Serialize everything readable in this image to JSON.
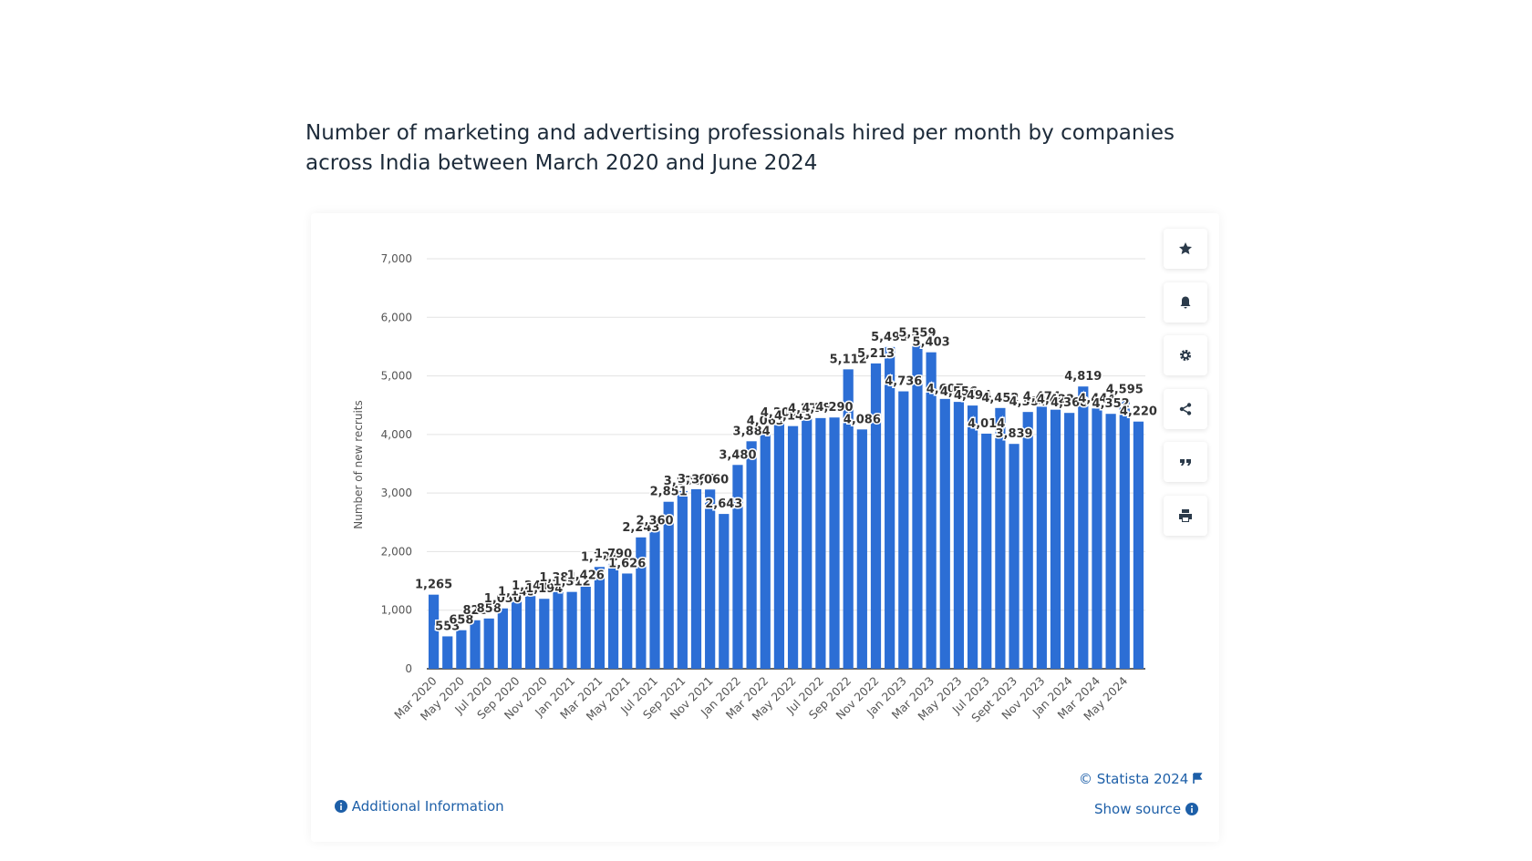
{
  "chart_data": {
    "type": "bar",
    "title": "Number of marketing and advertising professionals hired per month by companies across India between March 2020 and June 2024",
    "y_label": "Number of new recruits",
    "color": "#2c6ed5",
    "categories": [
      "Mar 2020",
      null,
      "May 2020",
      null,
      "Jul 2020",
      null,
      "Sep 2020",
      null,
      "Nov 2020",
      null,
      "Jan 2021",
      null,
      "Mar 2021",
      null,
      "May 2021",
      null,
      "Jul 2021",
      null,
      "Sep 2021",
      null,
      "Nov 2021",
      null,
      "Jan 2022",
      null,
      "Mar 2022",
      null,
      "May 2022",
      null,
      "Jul 2022",
      null,
      "Sep 2022",
      null,
      "Nov 2022",
      null,
      "Jan 2023",
      null,
      "Mar 2023",
      null,
      "May 2023",
      null,
      "Jul 2023",
      null,
      "Sept 2023",
      null,
      "Nov 2023",
      null,
      "Jan 2024",
      null,
      "Mar 2024",
      null,
      "May 2024",
      null
    ],
    "values": [
      1265,
      553,
      658,
      828,
      858,
      1030,
      1145,
      1241,
      1194,
      1381,
      1312,
      1426,
      1738,
      1790,
      1626,
      2243,
      2360,
      2851,
      3035,
      3065,
      3060,
      2643,
      3480,
      3884,
      4063,
      4200,
      4143,
      4270,
      4280,
      4290,
      5112,
      4086,
      5213,
      5493,
      4736,
      5559,
      5403,
      4607,
      4556,
      4494,
      4014,
      4452,
      3839,
      4384,
      4474,
      4423,
      4368,
      4819,
      4444,
      4352,
      4595,
      4220
    ],
    "value_labels": [
      "1,265",
      "553",
      "658",
      "828",
      "858",
      "1,030",
      "1,145",
      "1,241",
      "1,194",
      "1,381",
      "1,312",
      "1,426",
      "1,738",
      "1,790",
      "1,626",
      "2,243",
      "2,360",
      "2,851",
      "3,035",
      "3,065",
      "3,060",
      "2,643",
      "3,480",
      "3,884",
      "4,063",
      "4,200",
      "4,143",
      "4,270",
      "4,280",
      "4,290",
      "5,112",
      "4,086",
      "5,213",
      "5,493",
      "4,736",
      "5,559",
      "5,403",
      "4,607",
      "4,556",
      "4,494",
      "4,014",
      "4,452",
      "3,839",
      "4,384",
      "4,474",
      "4,423",
      "4,368",
      "4,819",
      "4,444",
      "4,352",
      "4,595",
      "4,220"
    ],
    "ylim": [
      0,
      7000
    ],
    "yticks": [
      0,
      {
        "value": 1000,
        "label": "1,000"
      },
      {
        "value": 2000,
        "label": "2,000"
      },
      {
        "value": 3000,
        "label": "3,000"
      },
      {
        "value": 4000,
        "label": "4,000"
      },
      {
        "value": 5000,
        "label": "5,000"
      },
      {
        "value": 6000,
        "label": "6,000"
      },
      {
        "value": 7000,
        "label": "7,000"
      }
    ],
    "grid": true
  },
  "footer": {
    "copyright": "© Statista 2024",
    "additional_info": "Additional Information",
    "show_source": "Show source"
  }
}
